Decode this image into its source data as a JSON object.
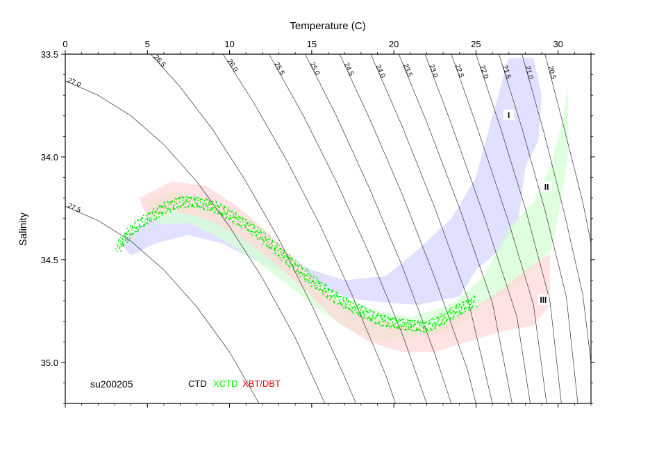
{
  "chart_data": {
    "type": "scatter",
    "title": "",
    "xlabel": "Temperature (C)",
    "ylabel": "Salinity",
    "xlim": [
      0,
      32
    ],
    "ylim": [
      35.2,
      33.5
    ],
    "x_axis_position": "top",
    "y_axis_inverted": true,
    "x_ticks": [
      "0",
      "5",
      "10",
      "15",
      "20",
      "25",
      "30"
    ],
    "x_tick_values": [
      0,
      5,
      10,
      15,
      20,
      25,
      30
    ],
    "y_ticks": [
      "33.5",
      "34.0",
      "34.5",
      "35.0"
    ],
    "y_tick_values": [
      33.5,
      34.0,
      34.5,
      35.0
    ],
    "cruise_label": "su200205",
    "legend": [
      {
        "label": "CTD",
        "color": "#000000"
      },
      {
        "label": "XCTD",
        "color": "#00ee00"
      },
      {
        "label": "XBT/DBT",
        "color": "#ee0000"
      }
    ],
    "isopycnals": [
      {
        "label": "27.5",
        "points": [
          [
            0,
            34.24
          ],
          [
            2.0,
            34.31
          ],
          [
            4.0,
            34.41
          ],
          [
            6.0,
            34.55
          ],
          [
            8.0,
            34.73
          ],
          [
            10.0,
            34.95
          ],
          [
            11.8,
            35.2
          ]
        ]
      },
      {
        "label": "27.0",
        "points": [
          [
            0,
            33.63
          ],
          [
            2.0,
            33.7
          ],
          [
            4.0,
            33.8
          ],
          [
            6.0,
            33.94
          ],
          [
            8.0,
            34.12
          ],
          [
            10.0,
            34.34
          ],
          [
            12.0,
            34.59
          ],
          [
            14.0,
            34.88
          ],
          [
            15.8,
            35.2
          ]
        ]
      },
      {
        "label": "26.5",
        "points": [
          [
            5.2,
            33.5
          ],
          [
            7.0,
            33.66
          ],
          [
            9.0,
            33.87
          ],
          [
            11.0,
            34.12
          ],
          [
            13.0,
            34.4
          ],
          [
            15.0,
            34.72
          ],
          [
            17.0,
            35.07
          ],
          [
            17.7,
            35.2
          ]
        ]
      },
      {
        "label": "26.0",
        "points": [
          [
            9.6,
            33.5
          ],
          [
            11.5,
            33.74
          ],
          [
            13.5,
            34.02
          ],
          [
            15.5,
            34.33
          ],
          [
            17.5,
            34.68
          ],
          [
            19.5,
            35.06
          ],
          [
            20.1,
            35.2
          ]
        ]
      },
      {
        "label": "25.5",
        "points": [
          [
            12.4,
            33.5
          ],
          [
            14.5,
            33.8
          ],
          [
            16.5,
            34.12
          ],
          [
            18.5,
            34.47
          ],
          [
            20.5,
            34.86
          ],
          [
            22.0,
            35.2
          ]
        ]
      },
      {
        "label": "25.0",
        "points": [
          [
            14.6,
            33.5
          ],
          [
            16.5,
            33.8
          ],
          [
            18.5,
            34.15
          ],
          [
            20.5,
            34.53
          ],
          [
            22.5,
            34.96
          ],
          [
            23.5,
            35.2
          ]
        ]
      },
      {
        "label": "24.5",
        "points": [
          [
            16.7,
            33.5
          ],
          [
            18.5,
            33.81
          ],
          [
            20.5,
            34.18
          ],
          [
            22.5,
            34.59
          ],
          [
            24.5,
            35.04
          ],
          [
            25.0,
            35.2
          ]
        ]
      },
      {
        "label": "24.0",
        "points": [
          [
            18.6,
            33.5
          ],
          [
            20.5,
            33.85
          ],
          [
            22.5,
            34.25
          ],
          [
            24.5,
            34.69
          ],
          [
            26.0,
            35.2
          ]
        ]
      },
      {
        "label": "23.5",
        "points": [
          [
            20.3,
            33.5
          ],
          [
            22.0,
            33.83
          ],
          [
            24.0,
            34.25
          ],
          [
            26.0,
            34.71
          ],
          [
            27.2,
            35.2
          ]
        ]
      },
      {
        "label": "23.0",
        "points": [
          [
            21.9,
            33.5
          ],
          [
            23.5,
            33.84
          ],
          [
            25.5,
            34.29
          ],
          [
            27.5,
            34.78
          ],
          [
            28.3,
            35.2
          ]
        ]
      },
      {
        "label": "22.5",
        "points": [
          [
            23.5,
            33.5
          ],
          [
            25.0,
            33.84
          ],
          [
            27.0,
            34.32
          ],
          [
            28.5,
            34.72
          ],
          [
            29.3,
            35.2
          ]
        ]
      },
      {
        "label": "22.0",
        "points": [
          [
            25.0,
            33.5
          ],
          [
            26.5,
            33.86
          ],
          [
            28.0,
            34.25
          ],
          [
            29.5,
            34.7
          ],
          [
            30.2,
            35.2
          ]
        ]
      },
      {
        "label": "21.5",
        "points": [
          [
            26.4,
            33.5
          ],
          [
            27.8,
            33.86
          ],
          [
            29.2,
            34.26
          ],
          [
            30.5,
            34.68
          ],
          [
            31.2,
            35.2
          ]
        ]
      },
      {
        "label": "21.0",
        "points": [
          [
            27.8,
            33.5
          ],
          [
            29.1,
            33.87
          ],
          [
            30.4,
            34.28
          ],
          [
            31.5,
            34.67
          ],
          [
            32.0,
            35.0
          ]
        ]
      },
      {
        "label": "20.5",
        "points": [
          [
            29.2,
            33.5
          ],
          [
            30.4,
            33.87
          ],
          [
            31.5,
            34.22
          ],
          [
            32.0,
            34.42
          ]
        ]
      }
    ],
    "envelopes": [
      {
        "label": "I",
        "color": "#d6d6ff",
        "polygon": [
          [
            3.3,
            34.42
          ],
          [
            5.0,
            34.31
          ],
          [
            7.0,
            34.27
          ],
          [
            9.0,
            34.3
          ],
          [
            11.0,
            34.38
          ],
          [
            13.0,
            34.47
          ],
          [
            15.0,
            34.55
          ],
          [
            17.0,
            34.6
          ],
          [
            19.5,
            34.58
          ],
          [
            21.5,
            34.45
          ],
          [
            23.5,
            34.3
          ],
          [
            25.0,
            34.1
          ],
          [
            26.0,
            33.8
          ],
          [
            27.0,
            33.52
          ],
          [
            28.5,
            33.52
          ],
          [
            29.0,
            33.7
          ],
          [
            28.8,
            33.92
          ],
          [
            28.0,
            34.05
          ],
          [
            27.6,
            34.3
          ],
          [
            26.5,
            34.45
          ],
          [
            25.0,
            34.55
          ],
          [
            24.0,
            34.68
          ],
          [
            21.5,
            34.72
          ],
          [
            19.5,
            34.71
          ],
          [
            17.5,
            34.69
          ],
          [
            15.5,
            34.64
          ],
          [
            13.5,
            34.57
          ],
          [
            11.5,
            34.5
          ],
          [
            9.5,
            34.42
          ],
          [
            7.5,
            34.38
          ],
          [
            5.5,
            34.42
          ],
          [
            4.0,
            34.48
          ]
        ]
      },
      {
        "label": "II",
        "color": "#d4ffd4",
        "polygon": [
          [
            4.8,
            34.22
          ],
          [
            6.5,
            34.17
          ],
          [
            8.5,
            34.2
          ],
          [
            10.5,
            34.3
          ],
          [
            12.5,
            34.42
          ],
          [
            14.5,
            34.55
          ],
          [
            16.5,
            34.68
          ],
          [
            18.5,
            34.74
          ],
          [
            21.0,
            34.78
          ],
          [
            23.5,
            34.72
          ],
          [
            25.5,
            34.58
          ],
          [
            27.0,
            34.35
          ],
          [
            28.5,
            34.22
          ],
          [
            29.5,
            34.05
          ],
          [
            30.2,
            33.85
          ],
          [
            30.6,
            33.66
          ],
          [
            30.6,
            34.0
          ],
          [
            30.1,
            34.25
          ],
          [
            29.6,
            34.45
          ],
          [
            27.5,
            34.62
          ],
          [
            25.5,
            34.72
          ],
          [
            23.5,
            34.85
          ],
          [
            21.5,
            34.88
          ],
          [
            19.5,
            34.9
          ],
          [
            17.5,
            34.85
          ],
          [
            15.5,
            34.75
          ],
          [
            13.5,
            34.62
          ],
          [
            11.5,
            34.5
          ],
          [
            9.5,
            34.4
          ],
          [
            7.5,
            34.32
          ],
          [
            5.5,
            34.33
          ]
        ]
      },
      {
        "label": "III",
        "color": "#ffd8d8",
        "polygon": [
          [
            4.5,
            34.2
          ],
          [
            6.5,
            34.12
          ],
          [
            8.5,
            34.14
          ],
          [
            10.5,
            34.24
          ],
          [
            12.5,
            34.38
          ],
          [
            14.5,
            34.54
          ],
          [
            16.5,
            34.7
          ],
          [
            18.5,
            34.78
          ],
          [
            20.5,
            34.82
          ],
          [
            22.5,
            34.83
          ],
          [
            24.5,
            34.75
          ],
          [
            26.5,
            34.65
          ],
          [
            28.0,
            34.55
          ],
          [
            29.5,
            34.47
          ],
          [
            29.5,
            34.72
          ],
          [
            28.5,
            34.82
          ],
          [
            26.5,
            34.85
          ],
          [
            24.5,
            34.9
          ],
          [
            22.5,
            34.95
          ],
          [
            20.5,
            34.95
          ],
          [
            18.5,
            34.9
          ],
          [
            16.5,
            34.8
          ],
          [
            14.5,
            34.64
          ],
          [
            12.5,
            34.5
          ],
          [
            10.5,
            34.38
          ],
          [
            8.5,
            34.3
          ],
          [
            6.5,
            34.26
          ],
          [
            5.0,
            34.3
          ]
        ]
      }
    ],
    "series": [
      {
        "name": "XCTD",
        "color": "#00ee00",
        "points": [
          [
            3.2,
            34.44
          ],
          [
            4.0,
            34.36
          ],
          [
            5.0,
            34.3
          ],
          [
            6.0,
            34.25
          ],
          [
            7.0,
            34.22
          ],
          [
            8.0,
            34.22
          ],
          [
            9.0,
            34.24
          ],
          [
            10.0,
            34.28
          ],
          [
            11.0,
            34.33
          ],
          [
            12.0,
            34.39
          ],
          [
            13.0,
            34.46
          ],
          [
            14.0,
            34.53
          ],
          [
            15.0,
            34.6
          ],
          [
            16.0,
            34.66
          ],
          [
            17.0,
            34.71
          ],
          [
            18.0,
            34.75
          ],
          [
            19.0,
            34.79
          ],
          [
            20.0,
            34.81
          ],
          [
            21.0,
            34.82
          ],
          [
            22.0,
            34.83
          ],
          [
            23.0,
            34.79
          ],
          [
            24.0,
            34.74
          ],
          [
            25.0,
            34.7
          ]
        ]
      }
    ]
  }
}
